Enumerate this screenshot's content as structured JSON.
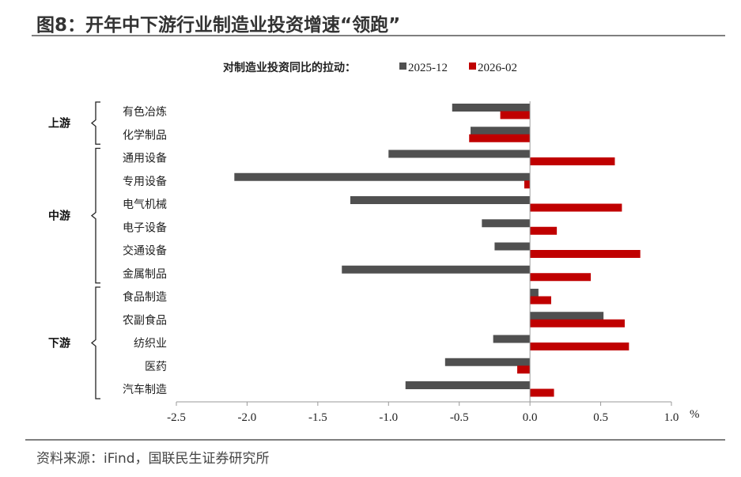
{
  "title": "图8：开年中下游行业制造业投资增速“领跑”",
  "source": "资料来源：iFind，国联民生证券研究所",
  "chart_data": {
    "type": "bar",
    "orientation": "horizontal",
    "legend_title": "对制造业投资同比的拉动：",
    "legend_position": "top",
    "categories": [
      "有色冶炼",
      "化学制品",
      "通用设备",
      "专用设备",
      "电气机械",
      "电子设备",
      "交通设备",
      "金属制品",
      "食品制造",
      "农副食品",
      "纺织业",
      "医药",
      "汽车制造"
    ],
    "groups": [
      {
        "name": "上游",
        "categories": [
          "有色冶炼",
          "化学制品"
        ]
      },
      {
        "name": "中游",
        "categories": [
          "通用设备",
          "专用设备",
          "电气机械",
          "电子设备",
          "交通设备",
          "金属制品"
        ]
      },
      {
        "name": "下游",
        "categories": [
          "食品制造",
          "农副食品",
          "纺织业",
          "医药",
          "汽车制造"
        ]
      }
    ],
    "series": [
      {
        "name": "2025-12",
        "color": "#505050",
        "values": [
          -0.55,
          -0.42,
          -1.0,
          -2.09,
          -1.27,
          -0.34,
          -0.25,
          -1.33,
          0.06,
          0.52,
          -0.26,
          -0.6,
          -0.88
        ]
      },
      {
        "name": "2026-02",
        "color": "#c00000",
        "values": [
          -0.21,
          -0.43,
          0.6,
          -0.04,
          0.65,
          0.19,
          0.78,
          0.43,
          0.15,
          0.67,
          0.7,
          -0.09,
          0.17
        ]
      }
    ],
    "xlim": [
      -2.5,
      1.0
    ],
    "xticks": [
      "-2.5",
      "-2.0",
      "-1.5",
      "-1.0",
      "-0.5",
      "0.0",
      "0.5",
      "1.0"
    ],
    "xunit": "%",
    "grid": false
  }
}
